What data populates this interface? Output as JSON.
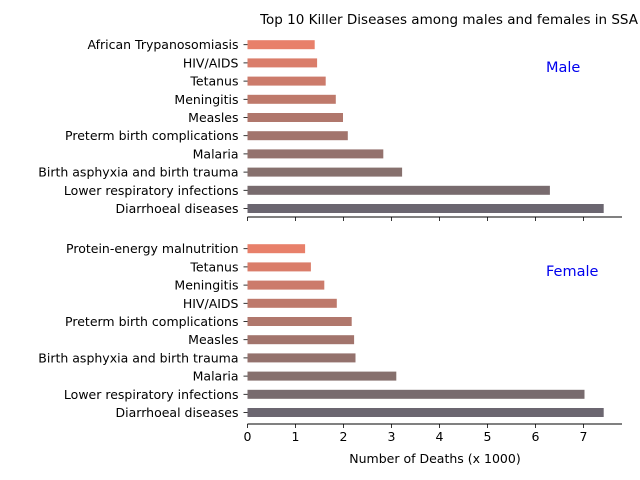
{
  "chart_data": [
    {
      "type": "bar",
      "orientation": "horizontal",
      "title": "Top 10 Killer Diseases among males and females in SSA",
      "panel_label": "Male",
      "categories": [
        "Diarrhoeal diseases",
        "Lower respiratory infections",
        "Birth asphyxia and birth trauma",
        "Malaria",
        "Preterm birth complications",
        "Measles",
        "Meningitis",
        "Tetanus",
        "HIV/AIDS",
        "African Trypanosomiasis"
      ],
      "values": [
        7.42,
        6.3,
        3.22,
        2.83,
        2.09,
        1.99,
        1.84,
        1.63,
        1.45,
        1.4
      ],
      "xlim": [
        0,
        7.8
      ],
      "xticks": [
        "0",
        "1",
        "2",
        "3",
        "4",
        "5",
        "6",
        "7"
      ],
      "show_xtick_labels": false,
      "colors": [
        "#6b6670",
        "#786b6e",
        "#86706d",
        "#94726d",
        "#a2746c",
        "#b0776c",
        "#be796b",
        "#cc7b6b",
        "#da7d6a",
        "#e8806a"
      ],
      "grid": false
    },
    {
      "type": "bar",
      "orientation": "horizontal",
      "panel_label": "Female",
      "categories": [
        "Diarrhoeal diseases",
        "Lower respiratory infections",
        "Malaria",
        "Birth asphyxia and birth trauma",
        "Measles",
        "Preterm birth complications",
        "HIV/AIDS",
        "Meningitis",
        "Tetanus",
        "Protein-energy malnutrition"
      ],
      "values": [
        7.42,
        7.02,
        3.1,
        2.25,
        2.22,
        2.17,
        1.86,
        1.6,
        1.32,
        1.2
      ],
      "xlim": [
        0,
        7.8
      ],
      "xticks": [
        "0",
        "1",
        "2",
        "3",
        "4",
        "5",
        "6",
        "7"
      ],
      "show_xtick_labels": true,
      "xlabel": "Number of Deaths (x 1000)",
      "colors": [
        "#6b6670",
        "#786b6e",
        "#86706d",
        "#94726d",
        "#a2746c",
        "#b0776c",
        "#be796b",
        "#cc7b6b",
        "#da7d6a",
        "#e8806a"
      ],
      "grid": false
    }
  ]
}
